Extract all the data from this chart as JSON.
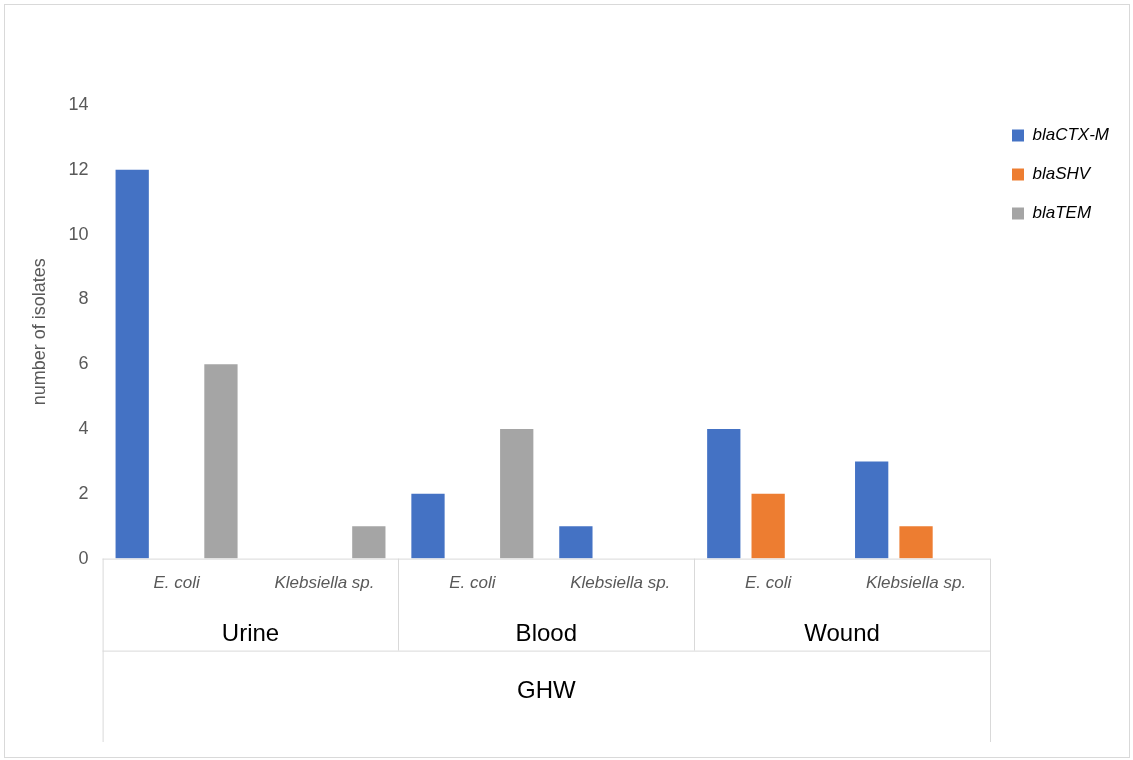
{
  "chart_data": {
    "type": "bar",
    "ylabel": "number of isolates",
    "xlabel": "GHW",
    "categories": [
      "E. coli",
      "Klebsiella sp.",
      "E. coli",
      "Klebsiella sp.",
      "E. coli",
      "Klebsiella sp."
    ],
    "annotations": [
      "Urine",
      "Blood",
      "Wound"
    ],
    "series": [
      {
        "name": "blaCTX-M",
        "color": "#4472c4",
        "values": [
          12,
          0,
          2,
          1,
          4,
          3
        ]
      },
      {
        "name": "blaSHV",
        "color": "#ed7d31",
        "values": [
          0,
          0,
          0,
          0,
          2,
          1
        ]
      },
      {
        "name": "blaTEM",
        "color": "#a5a5a5",
        "values": [
          6,
          1,
          4,
          0,
          0,
          0
        ]
      }
    ],
    "ylim": [
      0,
      14
    ],
    "yticks": [
      0,
      2,
      4,
      6,
      8,
      10,
      12,
      14
    ],
    "grid": false,
    "legend": "top right"
  }
}
